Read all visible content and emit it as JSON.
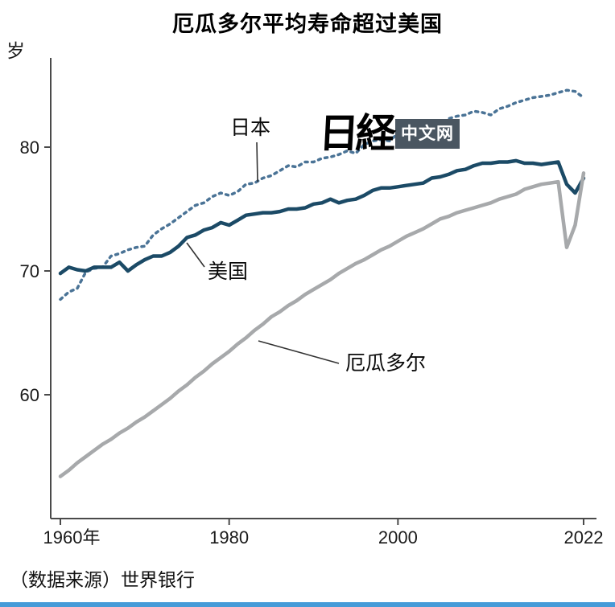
{
  "page": {
    "title": "厄瓜多尔平均寿命超过美国",
    "unit_label": "岁",
    "source": "（数据来源）世界银行",
    "accent_bar_color": "#459bd8",
    "watermark": {
      "brand": "日経",
      "suffix": "中文网",
      "badge_color": "#4a5661"
    }
  },
  "chart_data": {
    "type": "line",
    "title": "厄瓜多尔平均寿命超过美国",
    "xlabel": "",
    "ylabel": "岁",
    "ylim": [
      50,
      87
    ],
    "grid": false,
    "legend": "inline-labels",
    "x_range": [
      1960,
      2022
    ],
    "x_step": 1,
    "yticks": [
      60,
      70,
      80
    ],
    "xticks": [
      {
        "year": 1960,
        "label": "1960年"
      },
      {
        "year": 1980,
        "label": "1980"
      },
      {
        "year": 2000,
        "label": "2000"
      },
      {
        "year": 2022,
        "label": "2022"
      }
    ],
    "series": [
      {
        "id": "japan",
        "name": "日本",
        "color": "#4a7396",
        "style": "dashed",
        "values": [
          67.7,
          68.3,
          68.6,
          69.9,
          70.2,
          70.3,
          71.2,
          71.4,
          71.7,
          71.9,
          72.0,
          72.9,
          73.4,
          73.8,
          74.3,
          74.8,
          75.3,
          75.5,
          76.0,
          76.3,
          76.1,
          76.4,
          77.0,
          77.1,
          77.5,
          77.7,
          78.1,
          78.5,
          78.4,
          78.8,
          78.8,
          79.1,
          79.2,
          79.4,
          79.7,
          79.5,
          80.2,
          80.5,
          80.6,
          80.5,
          81.1,
          81.4,
          81.6,
          81.8,
          82.0,
          81.9,
          82.3,
          82.5,
          82.6,
          82.9,
          82.8,
          82.6,
          83.1,
          83.3,
          83.6,
          83.8,
          84.0,
          84.1,
          84.2,
          84.4,
          84.6,
          84.5,
          84.0
        ]
      },
      {
        "id": "usa",
        "name": "美国",
        "color": "#1b4a66",
        "style": "solid",
        "values": [
          69.8,
          70.3,
          70.1,
          70.0,
          70.3,
          70.3,
          70.3,
          70.7,
          70.0,
          70.5,
          70.9,
          71.2,
          71.2,
          71.5,
          72.0,
          72.7,
          72.9,
          73.3,
          73.5,
          73.9,
          73.7,
          74.1,
          74.5,
          74.6,
          74.7,
          74.7,
          74.8,
          75.0,
          75.0,
          75.1,
          75.4,
          75.5,
          75.8,
          75.5,
          75.7,
          75.8,
          76.1,
          76.5,
          76.7,
          76.7,
          76.8,
          76.9,
          77.0,
          77.1,
          77.5,
          77.6,
          77.8,
          78.1,
          78.2,
          78.5,
          78.7,
          78.7,
          78.8,
          78.8,
          78.9,
          78.7,
          78.7,
          78.6,
          78.7,
          78.8,
          77.0,
          76.3,
          77.5
        ]
      },
      {
        "id": "ecuador",
        "name": "厄瓜多尔",
        "color": "#a7a9ab",
        "style": "solid",
        "values": [
          53.4,
          53.9,
          54.5,
          55.0,
          55.5,
          56.0,
          56.4,
          56.9,
          57.3,
          57.8,
          58.2,
          58.7,
          59.2,
          59.7,
          60.3,
          60.8,
          61.4,
          61.9,
          62.5,
          63.0,
          63.5,
          64.1,
          64.6,
          65.2,
          65.7,
          66.3,
          66.7,
          67.2,
          67.6,
          68.1,
          68.5,
          68.9,
          69.3,
          69.8,
          70.2,
          70.6,
          70.9,
          71.3,
          71.7,
          72.0,
          72.4,
          72.8,
          73.1,
          73.4,
          73.8,
          74.2,
          74.4,
          74.7,
          74.9,
          75.1,
          75.3,
          75.5,
          75.8,
          76.0,
          76.2,
          76.6,
          76.8,
          77.0,
          77.1,
          77.2,
          71.9,
          73.7,
          77.9
        ]
      }
    ]
  }
}
